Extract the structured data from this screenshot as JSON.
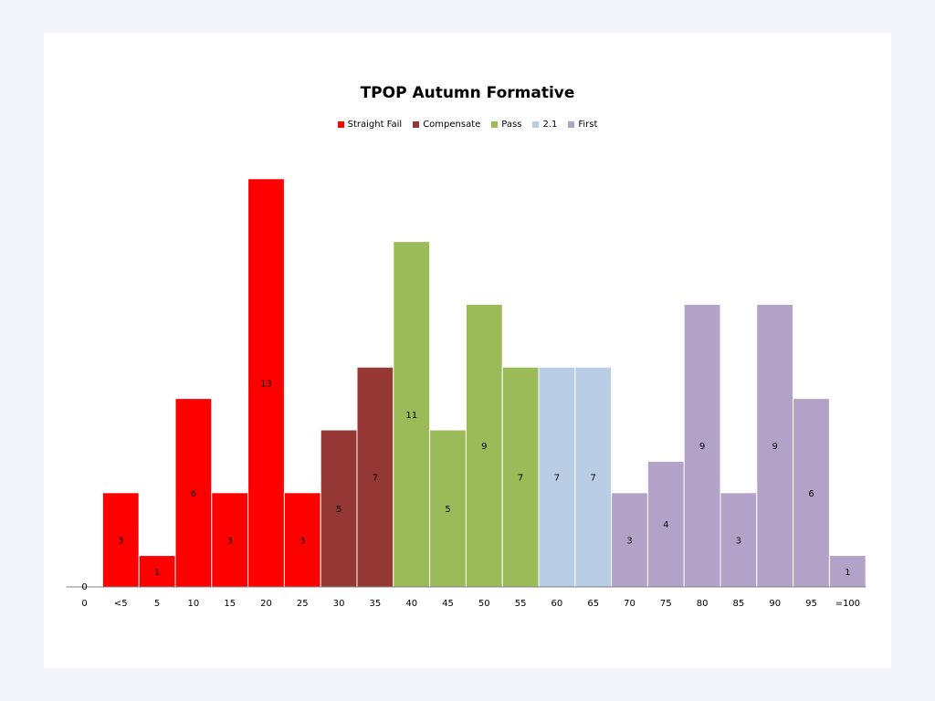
{
  "chart_data": {
    "type": "bar",
    "title": "TPOP Autumn Formative",
    "xlabel": "",
    "ylabel": "",
    "ylim": [
      0,
      13
    ],
    "grid": false,
    "legend_position": "top-center",
    "categories": [
      "0",
      "<5",
      "5",
      "10",
      "15",
      "20",
      "25",
      "30",
      "35",
      "40",
      "45",
      "50",
      "55",
      "60",
      "65",
      "70",
      "75",
      "80",
      "85",
      "90",
      "95",
      "=100"
    ],
    "values": [
      0,
      3,
      1,
      6,
      3,
      13,
      3,
      5,
      7,
      11,
      5,
      9,
      7,
      7,
      7,
      3,
      4,
      9,
      3,
      9,
      6,
      1
    ],
    "bar_groups": [
      "Straight Fail",
      "Straight Fail",
      "Straight Fail",
      "Straight Fail",
      "Straight Fail",
      "Straight Fail",
      "Straight Fail",
      "Compensate",
      "Compensate",
      "Pass",
      "Pass",
      "Pass",
      "Pass",
      "2.1",
      "2.1",
      "First",
      "First",
      "First",
      "First",
      "First",
      "First",
      "First"
    ],
    "legend": [
      {
        "name": "Straight Fail",
        "color": "#ff0000"
      },
      {
        "name": "Compensate",
        "color": "#953735"
      },
      {
        "name": "Pass",
        "color": "#9bbb59"
      },
      {
        "name": "2.1",
        "color": "#b9cde5"
      },
      {
        "name": "First",
        "color": "#b3a2c7"
      }
    ]
  }
}
